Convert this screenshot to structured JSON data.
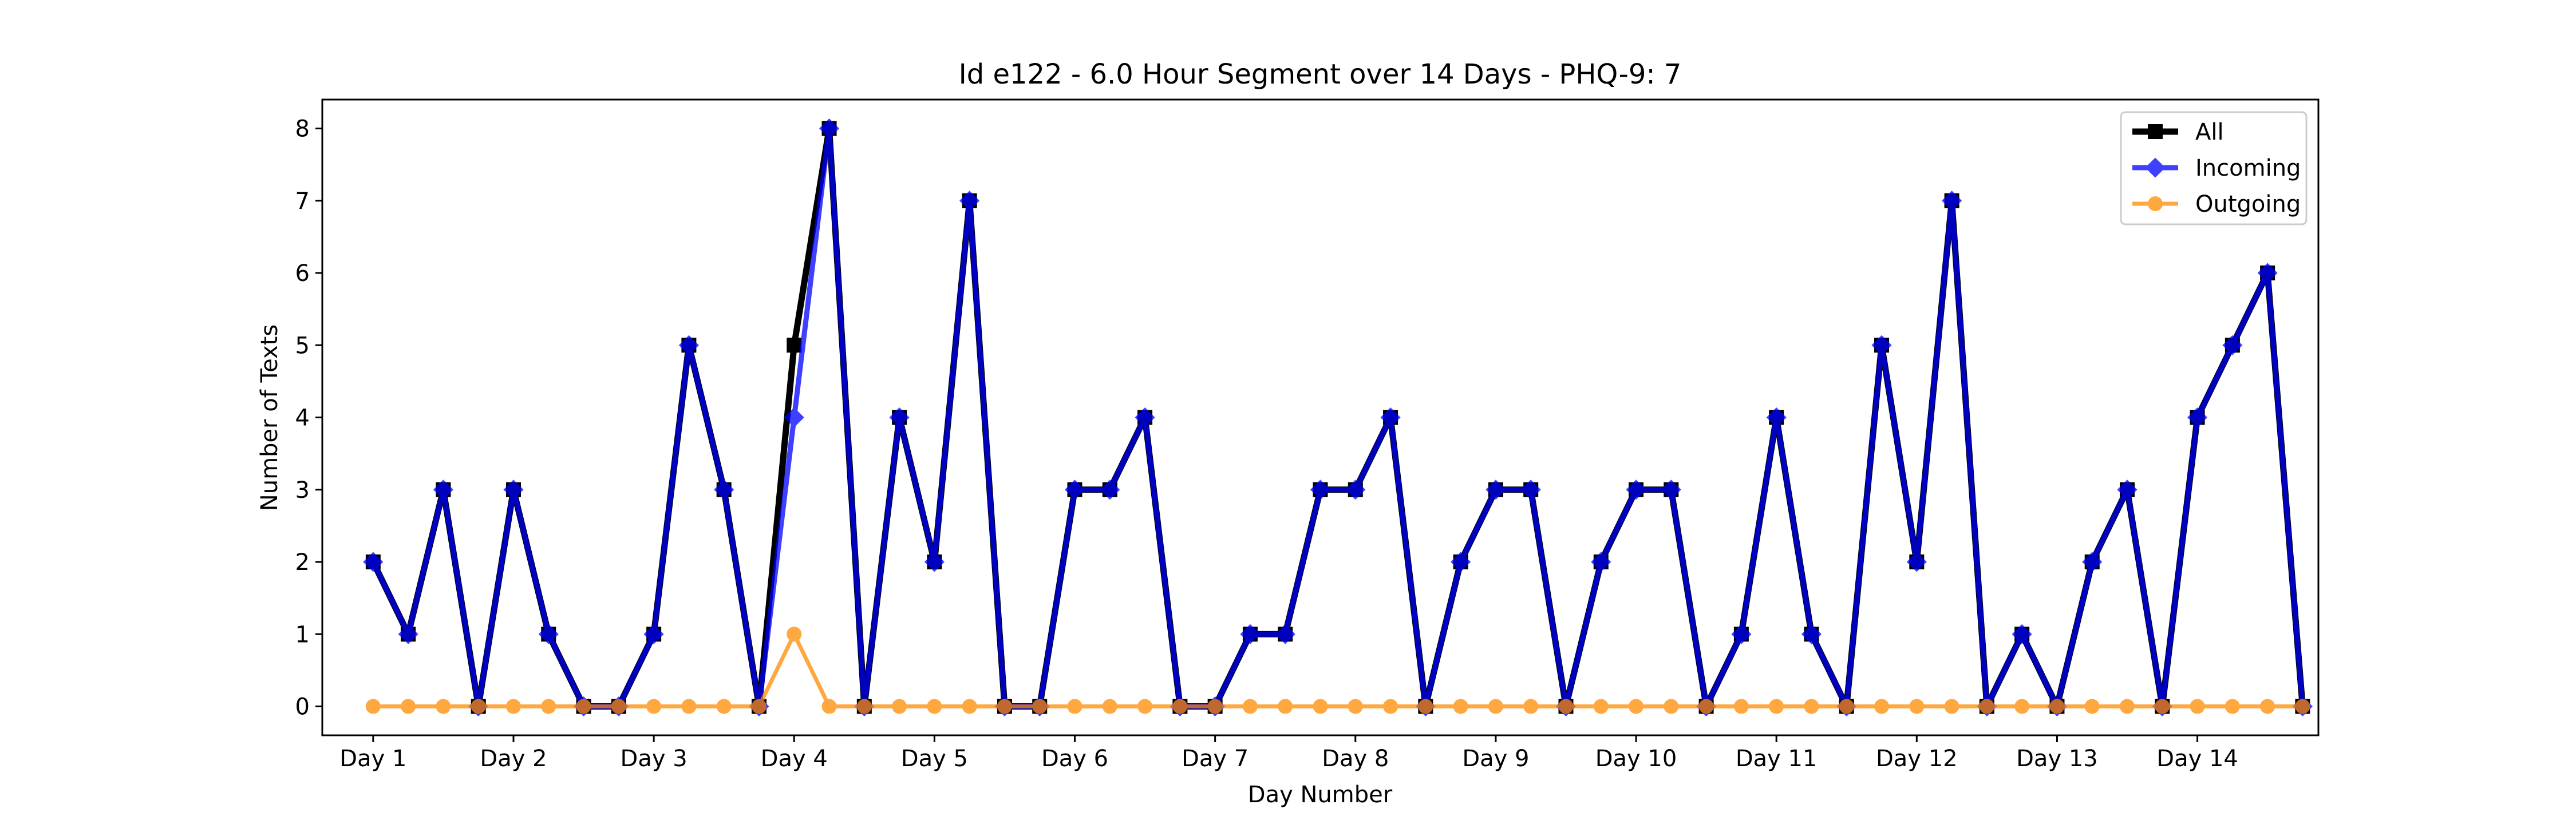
{
  "chart_data": {
    "type": "line",
    "title": "Id e122 - 6.0 Hour Segment over 14 Days - PHQ-9: 7",
    "xlabel": "Day Number",
    "ylabel": "Number of Texts",
    "ylim": [
      -0.4,
      8.4
    ],
    "xlim": [
      -1.45,
      55.45
    ],
    "yticks": [
      0,
      1,
      2,
      3,
      4,
      5,
      6,
      7,
      8
    ],
    "xticks": [
      {
        "pos": 0,
        "label": "Day 1"
      },
      {
        "pos": 4,
        "label": "Day 2"
      },
      {
        "pos": 8,
        "label": "Day 3"
      },
      {
        "pos": 12,
        "label": "Day 4"
      },
      {
        "pos": 16,
        "label": "Day 5"
      },
      {
        "pos": 20,
        "label": "Day 6"
      },
      {
        "pos": 24,
        "label": "Day 7"
      },
      {
        "pos": 28,
        "label": "Day 8"
      },
      {
        "pos": 32,
        "label": "Day 9"
      },
      {
        "pos": 36,
        "label": "Day 10"
      },
      {
        "pos": 40,
        "label": "Day 11"
      },
      {
        "pos": 44,
        "label": "Day 12"
      },
      {
        "pos": 48,
        "label": "Day 13"
      },
      {
        "pos": 52,
        "label": "Day 14"
      }
    ],
    "grid": false,
    "legend_position": "top-right",
    "series": [
      {
        "name": "All",
        "color": "#000000",
        "marker": "square",
        "values": [
          2,
          1,
          3,
          0,
          3,
          1,
          0,
          0,
          1,
          5,
          3,
          0,
          5,
          8,
          0,
          4,
          2,
          7,
          0,
          0,
          3,
          3,
          4,
          0,
          0,
          1,
          1,
          3,
          3,
          4,
          0,
          2,
          3,
          3,
          0,
          2,
          3,
          3,
          0,
          1,
          4,
          1,
          0,
          5,
          2,
          7,
          0,
          1,
          0,
          2,
          3,
          0,
          4,
          5,
          6,
          0
        ]
      },
      {
        "name": "Incoming",
        "color": "#0000ff",
        "marker": "diamond",
        "values": [
          2,
          1,
          3,
          0,
          3,
          1,
          0,
          0,
          1,
          5,
          3,
          0,
          4,
          8,
          0,
          4,
          2,
          7,
          0,
          0,
          3,
          3,
          4,
          0,
          0,
          1,
          1,
          3,
          3,
          4,
          0,
          2,
          3,
          3,
          0,
          2,
          3,
          3,
          0,
          1,
          4,
          1,
          0,
          5,
          2,
          7,
          0,
          1,
          0,
          2,
          3,
          0,
          4,
          5,
          6,
          0
        ]
      },
      {
        "name": "Outgoing",
        "color": "#ff8c00",
        "marker": "circle",
        "values": [
          0,
          0,
          0,
          0,
          0,
          0,
          0,
          0,
          0,
          0,
          0,
          0,
          1,
          0,
          0,
          0,
          0,
          0,
          0,
          0,
          0,
          0,
          0,
          0,
          0,
          0,
          0,
          0,
          0,
          0,
          0,
          0,
          0,
          0,
          0,
          0,
          0,
          0,
          0,
          0,
          0,
          0,
          0,
          0,
          0,
          0,
          0,
          0,
          0,
          0,
          0,
          0,
          0,
          0,
          0,
          0
        ]
      }
    ]
  }
}
